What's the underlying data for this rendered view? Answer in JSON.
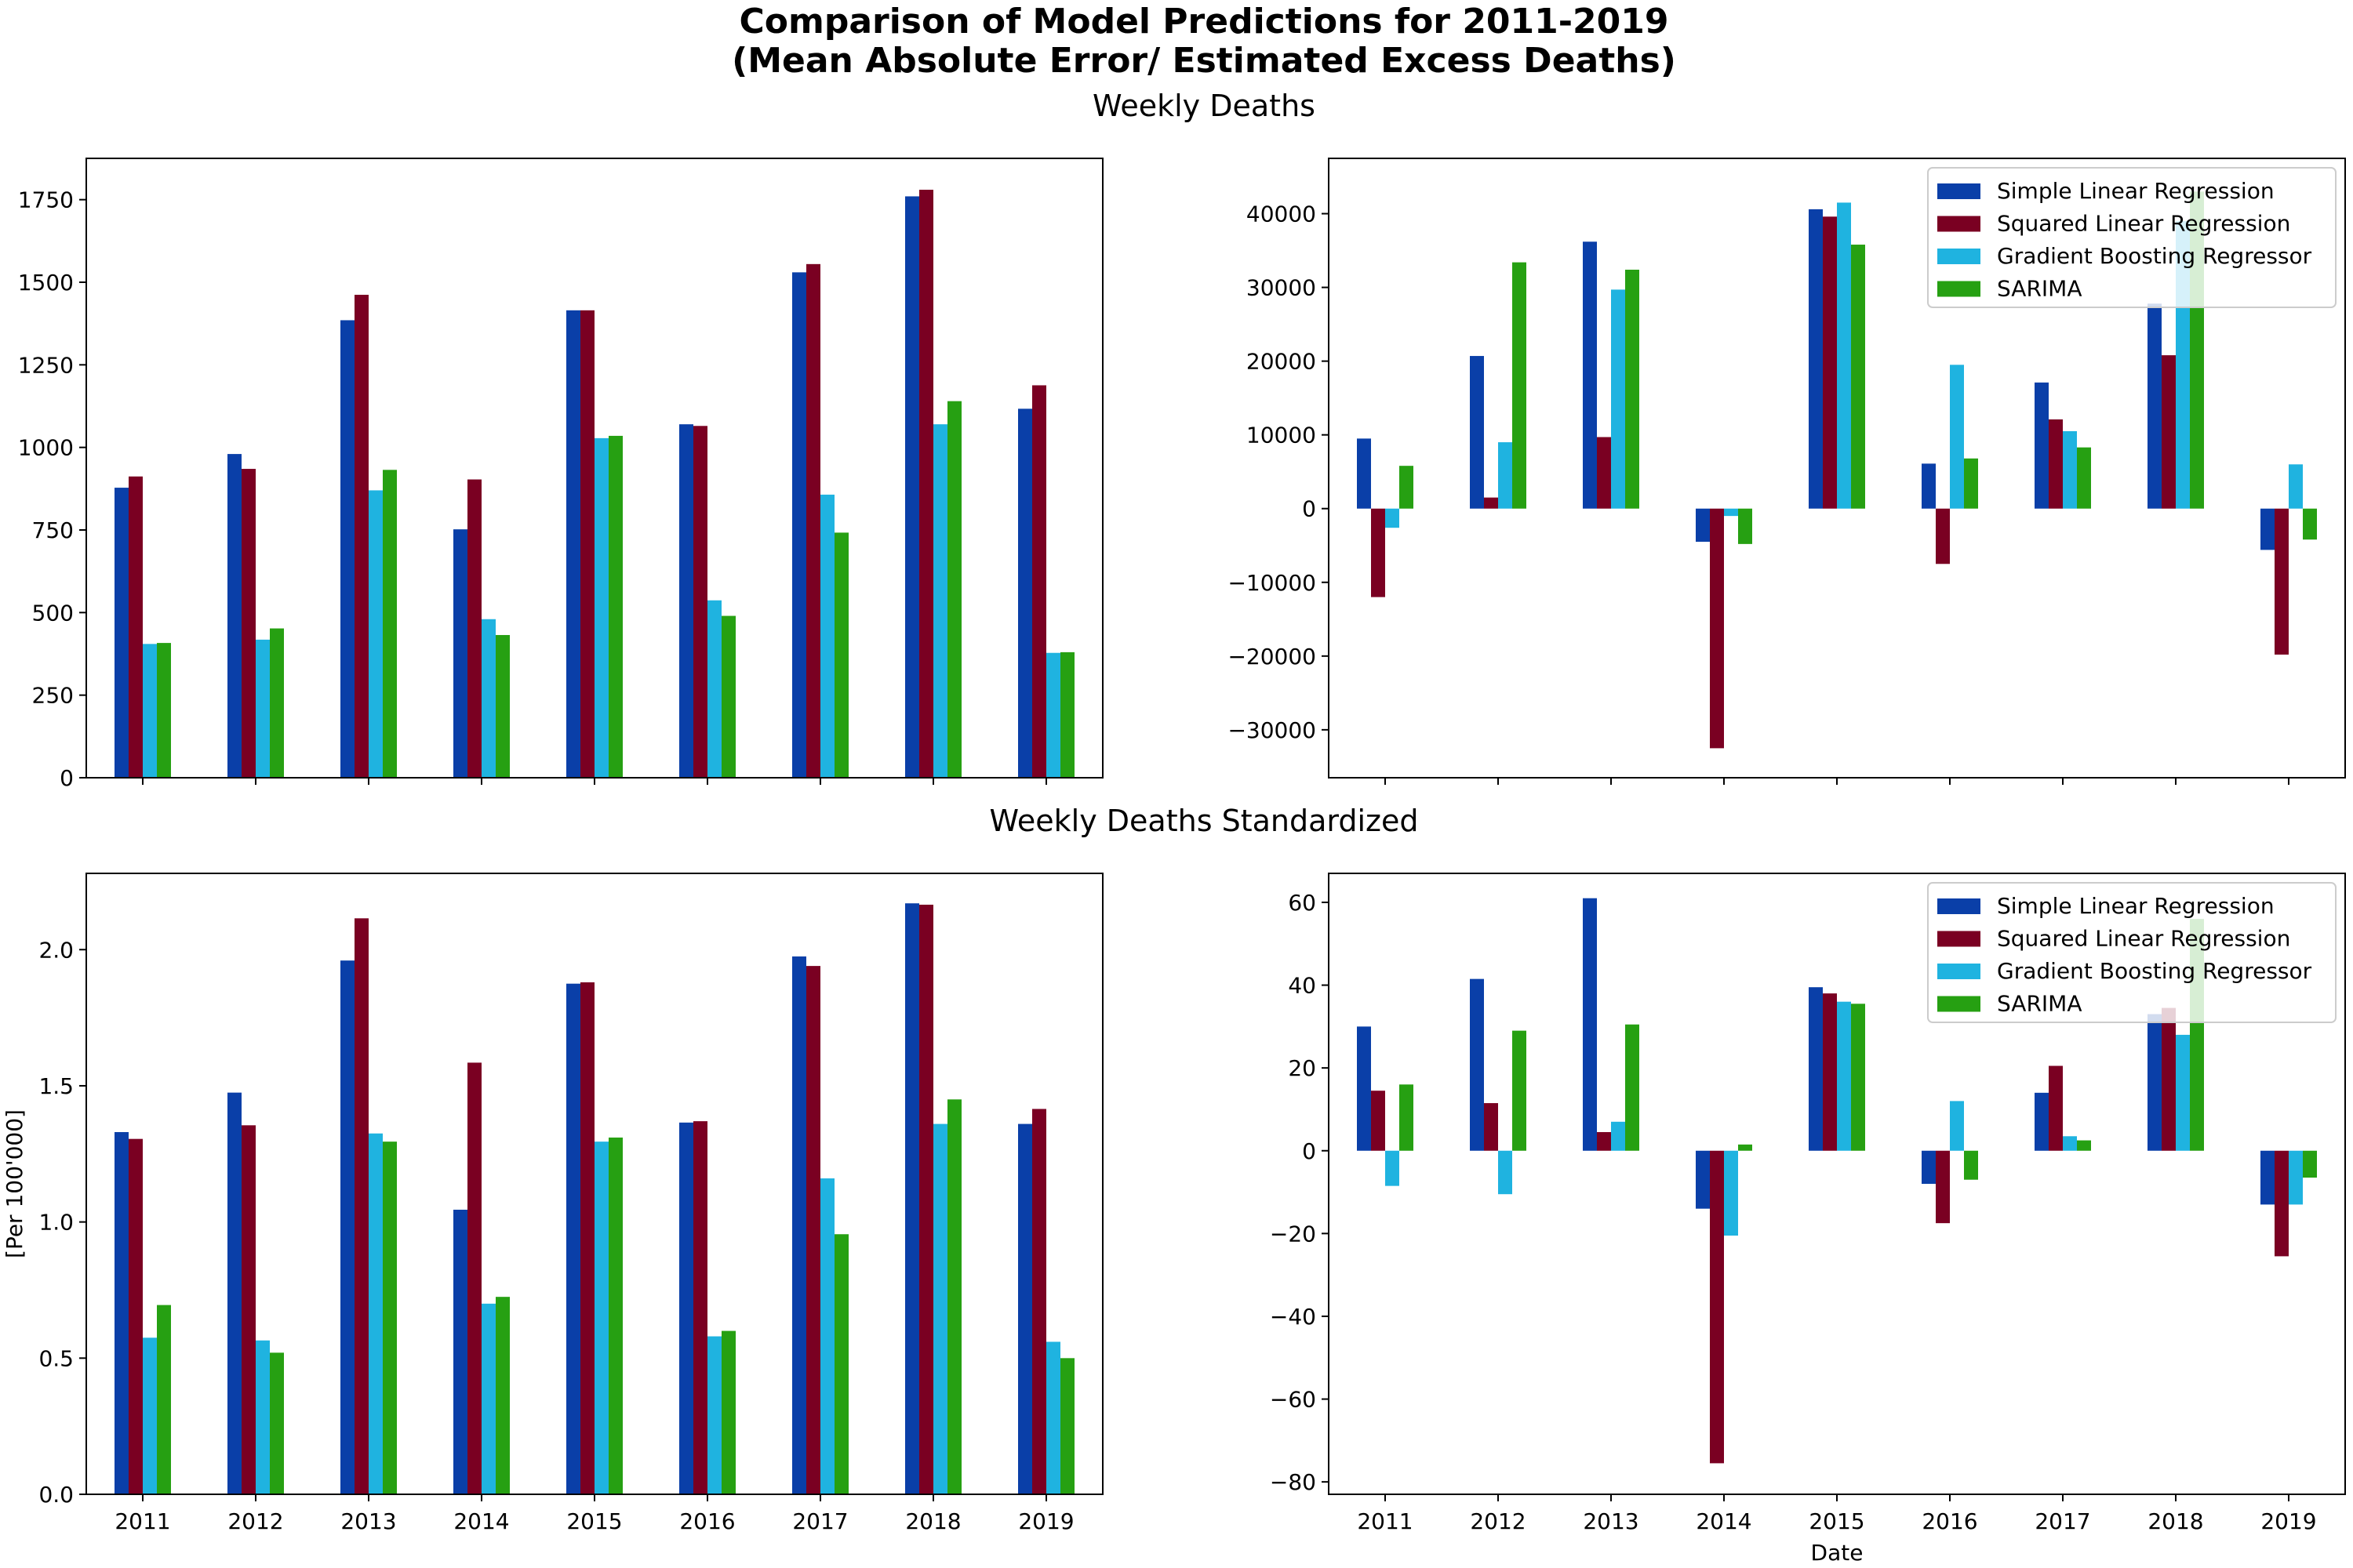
{
  "figure": {
    "title_line1": "Comparison of Model Predictions for 2011-2019",
    "title_line2": "(Mean Absolute Error/ Estimated Excess Deaths)",
    "row_titles": [
      "Weekly Deaths",
      "Weekly Deaths Standardized"
    ]
  },
  "colors": {
    "Simple Linear Regression": "#0a3fa8",
    "Squared Linear Regression": "#7a0022",
    "Gradient Boosting Regressor": "#1fb3e0",
    "SARIMA": "#26a012"
  },
  "chart_data": [
    {
      "type": "bar",
      "panel": "top-left",
      "categories": [
        "2011",
        "2012",
        "2013",
        "2014",
        "2015",
        "2016",
        "2017",
        "2018",
        "2019"
      ],
      "series": [
        {
          "name": "Simple Linear Regression",
          "values": [
            878,
            980,
            1385,
            752,
            1415,
            1070,
            1530,
            1760,
            1117
          ]
        },
        {
          "name": "Squared Linear Regression",
          "values": [
            912,
            935,
            1462,
            903,
            1415,
            1065,
            1555,
            1780,
            1188
          ]
        },
        {
          "name": "Gradient Boosting Regressor",
          "values": [
            405,
            418,
            870,
            480,
            1028,
            537,
            857,
            1070,
            378
          ]
        },
        {
          "name": "SARIMA",
          "values": [
            408,
            452,
            932,
            432,
            1035,
            490,
            742,
            1140,
            380
          ]
        }
      ],
      "ylim": [
        0,
        1875
      ],
      "yticks": [
        0,
        250,
        500,
        750,
        1000,
        1250,
        1500,
        1750
      ],
      "ytick_labels": [
        "0",
        "250",
        "500",
        "750",
        "1000",
        "1250",
        "1500",
        "1750"
      ],
      "xlabel": "",
      "ylabel": "",
      "show_xticklabels": false,
      "legend": false
    },
    {
      "type": "bar",
      "panel": "top-right",
      "categories": [
        "2011",
        "2012",
        "2013",
        "2014",
        "2015",
        "2016",
        "2017",
        "2018",
        "2019"
      ],
      "series": [
        {
          "name": "Simple Linear Regression",
          "values": [
            9500,
            20700,
            36200,
            -4500,
            40600,
            6100,
            17100,
            27800,
            -5600
          ]
        },
        {
          "name": "Squared Linear Regression",
          "values": [
            -12000,
            1500,
            9700,
            -32500,
            39600,
            -7500,
            12100,
            20800,
            -19800
          ]
        },
        {
          "name": "Gradient Boosting Regressor",
          "values": [
            -2600,
            9000,
            29700,
            -1000,
            41500,
            19500,
            10500,
            39000,
            6000
          ]
        },
        {
          "name": "SARIMA",
          "values": [
            5800,
            33400,
            32400,
            -4800,
            35800,
            6800,
            8300,
            43000,
            -4200
          ]
        }
      ],
      "ylim": [
        -36500,
        47500
      ],
      "yticks": [
        -30000,
        -20000,
        -10000,
        0,
        10000,
        20000,
        30000,
        40000
      ],
      "ytick_labels": [
        "−30000",
        "−20000",
        "−10000",
        "0",
        "10000",
        "20000",
        "30000",
        "40000"
      ],
      "xlabel": "",
      "ylabel": "",
      "show_xticklabels": false,
      "legend": true,
      "legend_placement": "top-right",
      "legend_entries": [
        "Simple Linear Regression",
        "Squared Linear Regression",
        "Gradient Boosting Regressor",
        "SARIMA"
      ]
    },
    {
      "type": "bar",
      "panel": "bottom-left",
      "categories": [
        "2011",
        "2012",
        "2013",
        "2014",
        "2015",
        "2016",
        "2017",
        "2018",
        "2019"
      ],
      "series": [
        {
          "name": "Simple Linear Regression",
          "values": [
            1.33,
            1.475,
            1.96,
            1.045,
            1.875,
            1.365,
            1.975,
            2.17,
            1.36
          ]
        },
        {
          "name": "Squared Linear Regression",
          "values": [
            1.305,
            1.355,
            2.115,
            1.585,
            1.88,
            1.37,
            1.94,
            2.165,
            1.415
          ]
        },
        {
          "name": "Gradient Boosting Regressor",
          "values": [
            0.575,
            0.565,
            1.325,
            0.7,
            1.295,
            0.58,
            1.16,
            1.36,
            0.56
          ]
        },
        {
          "name": "SARIMA",
          "values": [
            0.695,
            0.52,
            1.295,
            0.725,
            1.31,
            0.6,
            0.955,
            1.45,
            0.5
          ]
        }
      ],
      "ylim": [
        0,
        2.28
      ],
      "yticks": [
        0,
        0.5,
        1.0,
        1.5,
        2.0
      ],
      "ytick_labels": [
        "0.0",
        "0.5",
        "1.0",
        "1.5",
        "2.0"
      ],
      "xlabel": "",
      "ylabel": "[Per 100'000]",
      "show_xticklabels": true,
      "legend": false
    },
    {
      "type": "bar",
      "panel": "bottom-right",
      "categories": [
        "2011",
        "2012",
        "2013",
        "2014",
        "2015",
        "2016",
        "2017",
        "2018",
        "2019"
      ],
      "series": [
        {
          "name": "Simple Linear Regression",
          "values": [
            30,
            41.5,
            61,
            -14,
            39.5,
            -8,
            14,
            33,
            -13
          ]
        },
        {
          "name": "Squared Linear Regression",
          "values": [
            14.5,
            11.5,
            4.5,
            -75.5,
            38,
            -17.5,
            20.5,
            34.5,
            -25.5
          ]
        },
        {
          "name": "Gradient Boosting Regressor",
          "values": [
            -8.5,
            -10.5,
            7,
            -20.5,
            36,
            12,
            3.5,
            28,
            -13
          ]
        },
        {
          "name": "SARIMA",
          "values": [
            16,
            29,
            30.5,
            1.5,
            35.5,
            -7,
            2.5,
            56,
            -6.5
          ]
        }
      ],
      "ylim": [
        -83,
        67
      ],
      "yticks": [
        -80,
        -60,
        -40,
        -20,
        0,
        20,
        40,
        60
      ],
      "ytick_labels": [
        "−80",
        "−60",
        "−40",
        "−20",
        "0",
        "20",
        "40",
        "60"
      ],
      "xlabel": "Date",
      "ylabel": "",
      "show_xticklabels": true,
      "legend": true,
      "legend_placement": "top-right",
      "legend_entries": [
        "Simple Linear Regression",
        "Squared Linear Regression",
        "Gradient Boosting Regressor",
        "SARIMA"
      ]
    }
  ]
}
